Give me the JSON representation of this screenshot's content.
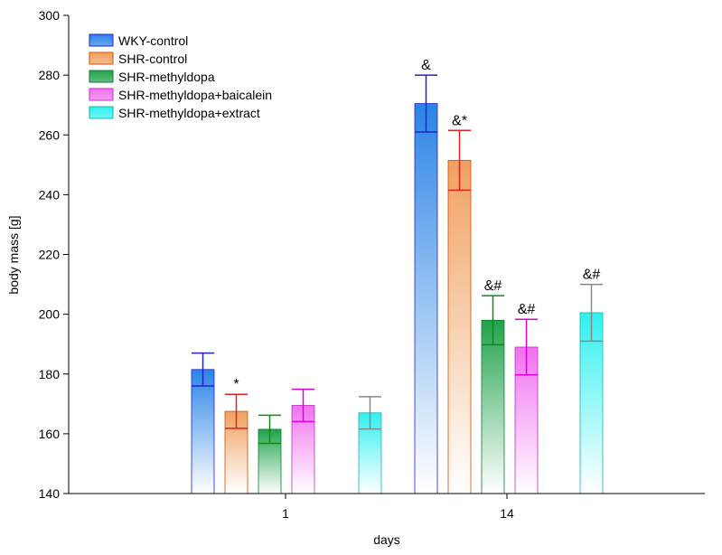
{
  "chart_data": {
    "type": "bar",
    "title": "",
    "xlabel": "days",
    "ylabel": "body mass [g]",
    "ylim": [
      140,
      300
    ],
    "yticks": [
      "140",
      "160",
      "180",
      "200",
      "220",
      "240",
      "260",
      "280",
      "300"
    ],
    "categories": [
      "1",
      "14"
    ],
    "legend_position": "top-left",
    "series": [
      {
        "name": "WKY-control",
        "color": "#2a83e6",
        "edge": "#2222cc",
        "err_color": "#2222cc",
        "values": [
          181.5,
          270.5
        ],
        "errors": [
          5.5,
          9.5
        ],
        "annotations": [
          "",
          "&"
        ],
        "present": [
          true,
          true
        ]
      },
      {
        "name": "SHR-control",
        "color": "#f0a060",
        "edge": "#d05000",
        "err_color": "#dd2222",
        "values": [
          167.5,
          251.5
        ],
        "errors": [
          5.7,
          10
        ],
        "annotations": [
          "*",
          "&*"
        ],
        "present": [
          true,
          true
        ]
      },
      {
        "name": "SHR-methyldopa",
        "color": "#1fa24a",
        "edge": "#117a33",
        "err_color": "#118811",
        "values": [
          161.5,
          198
        ],
        "errors": [
          4.7,
          8.2
        ],
        "annotations": [
          "",
          "&#"
        ],
        "present": [
          true,
          true
        ]
      },
      {
        "name": "SHR-methyldopa+baicalein",
        "color": "#f070f0",
        "edge": "#c030c0",
        "err_color": "#dd00dd",
        "values": [
          169.5,
          189
        ],
        "errors": [
          5.4,
          9.3
        ],
        "annotations": [
          "",
          "&#"
        ],
        "present": [
          true,
          true
        ]
      },
      {
        "name": "SHR-methyldopa+extract",
        "color": "#30f0f0",
        "edge": "#20b0b0",
        "err_color": "#888888",
        "values": [
          167,
          200.5
        ],
        "errors": [
          5.4,
          9.5
        ],
        "annotations": [
          "",
          "&#"
        ],
        "present": [
          true,
          true
        ]
      }
    ]
  }
}
